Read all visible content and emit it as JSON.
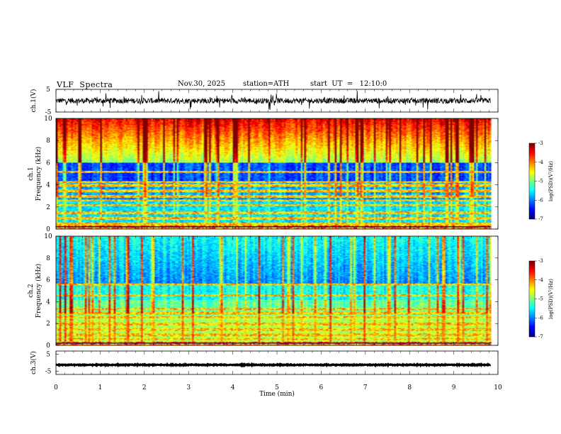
{
  "header": {
    "title": "VLF  Spectra",
    "date": "Nov.30, 2025",
    "station": "station=ATH",
    "start": "start  UT  =   12:10:0"
  },
  "chart_data": [
    {
      "type": "line",
      "ylabel": "ch.1(V)",
      "yticks": [
        5,
        -5
      ],
      "ylim": [
        -5,
        5
      ],
      "xlim": [
        0,
        10
      ],
      "x_extent": [
        0,
        9.83
      ],
      "baseline": 0,
      "noise_amplitude": 1.2
    },
    {
      "type": "heatmap",
      "ylabel_line1": "ch.1",
      "ylabel_line2": "Frequency (kHz)",
      "yticks": [
        0,
        2,
        4,
        6,
        8,
        10
      ],
      "ylim": [
        0,
        10
      ],
      "xlim": [
        0,
        10
      ],
      "colorbar": {
        "label": "log(PSD)(V²/Hz)",
        "ticks": [
          -3,
          -4,
          -5,
          -6,
          -7
        ],
        "range": [
          -7,
          -3
        ]
      },
      "bands_khz": [
        0.5,
        1.0,
        1.5,
        2.2,
        2.6,
        3.0,
        3.5,
        4.0,
        4.3,
        5.2
      ]
    },
    {
      "type": "heatmap",
      "ylabel_line1": "ch.2",
      "ylabel_line2": "Frequency (kHz)",
      "yticks": [
        0,
        2,
        4,
        6,
        8,
        10
      ],
      "ylim": [
        0,
        10
      ],
      "xlim": [
        0,
        10
      ],
      "colorbar": {
        "label": "log(PSD)(V²/Hz)",
        "ticks": [
          -3,
          -4,
          -5,
          -6,
          -7
        ],
        "range": [
          -7,
          -3
        ]
      },
      "bands_khz": [
        0.6,
        1.0,
        1.5,
        2.0,
        2.6,
        3.0,
        3.4,
        4.6,
        5.6
      ]
    },
    {
      "type": "line",
      "ylabel": "ch.3(V)",
      "yticks": [
        5,
        -5
      ],
      "ylim": [
        -7,
        7
      ],
      "xlim": [
        0,
        10
      ],
      "x_extent": [
        0,
        9.83
      ],
      "baseline": -1.3,
      "noise_amplitude": 0.25
    }
  ],
  "xaxis": {
    "label": "Time (min)",
    "ticks": [
      0,
      1,
      2,
      3,
      4,
      5,
      6,
      7,
      8,
      9,
      10
    ]
  }
}
